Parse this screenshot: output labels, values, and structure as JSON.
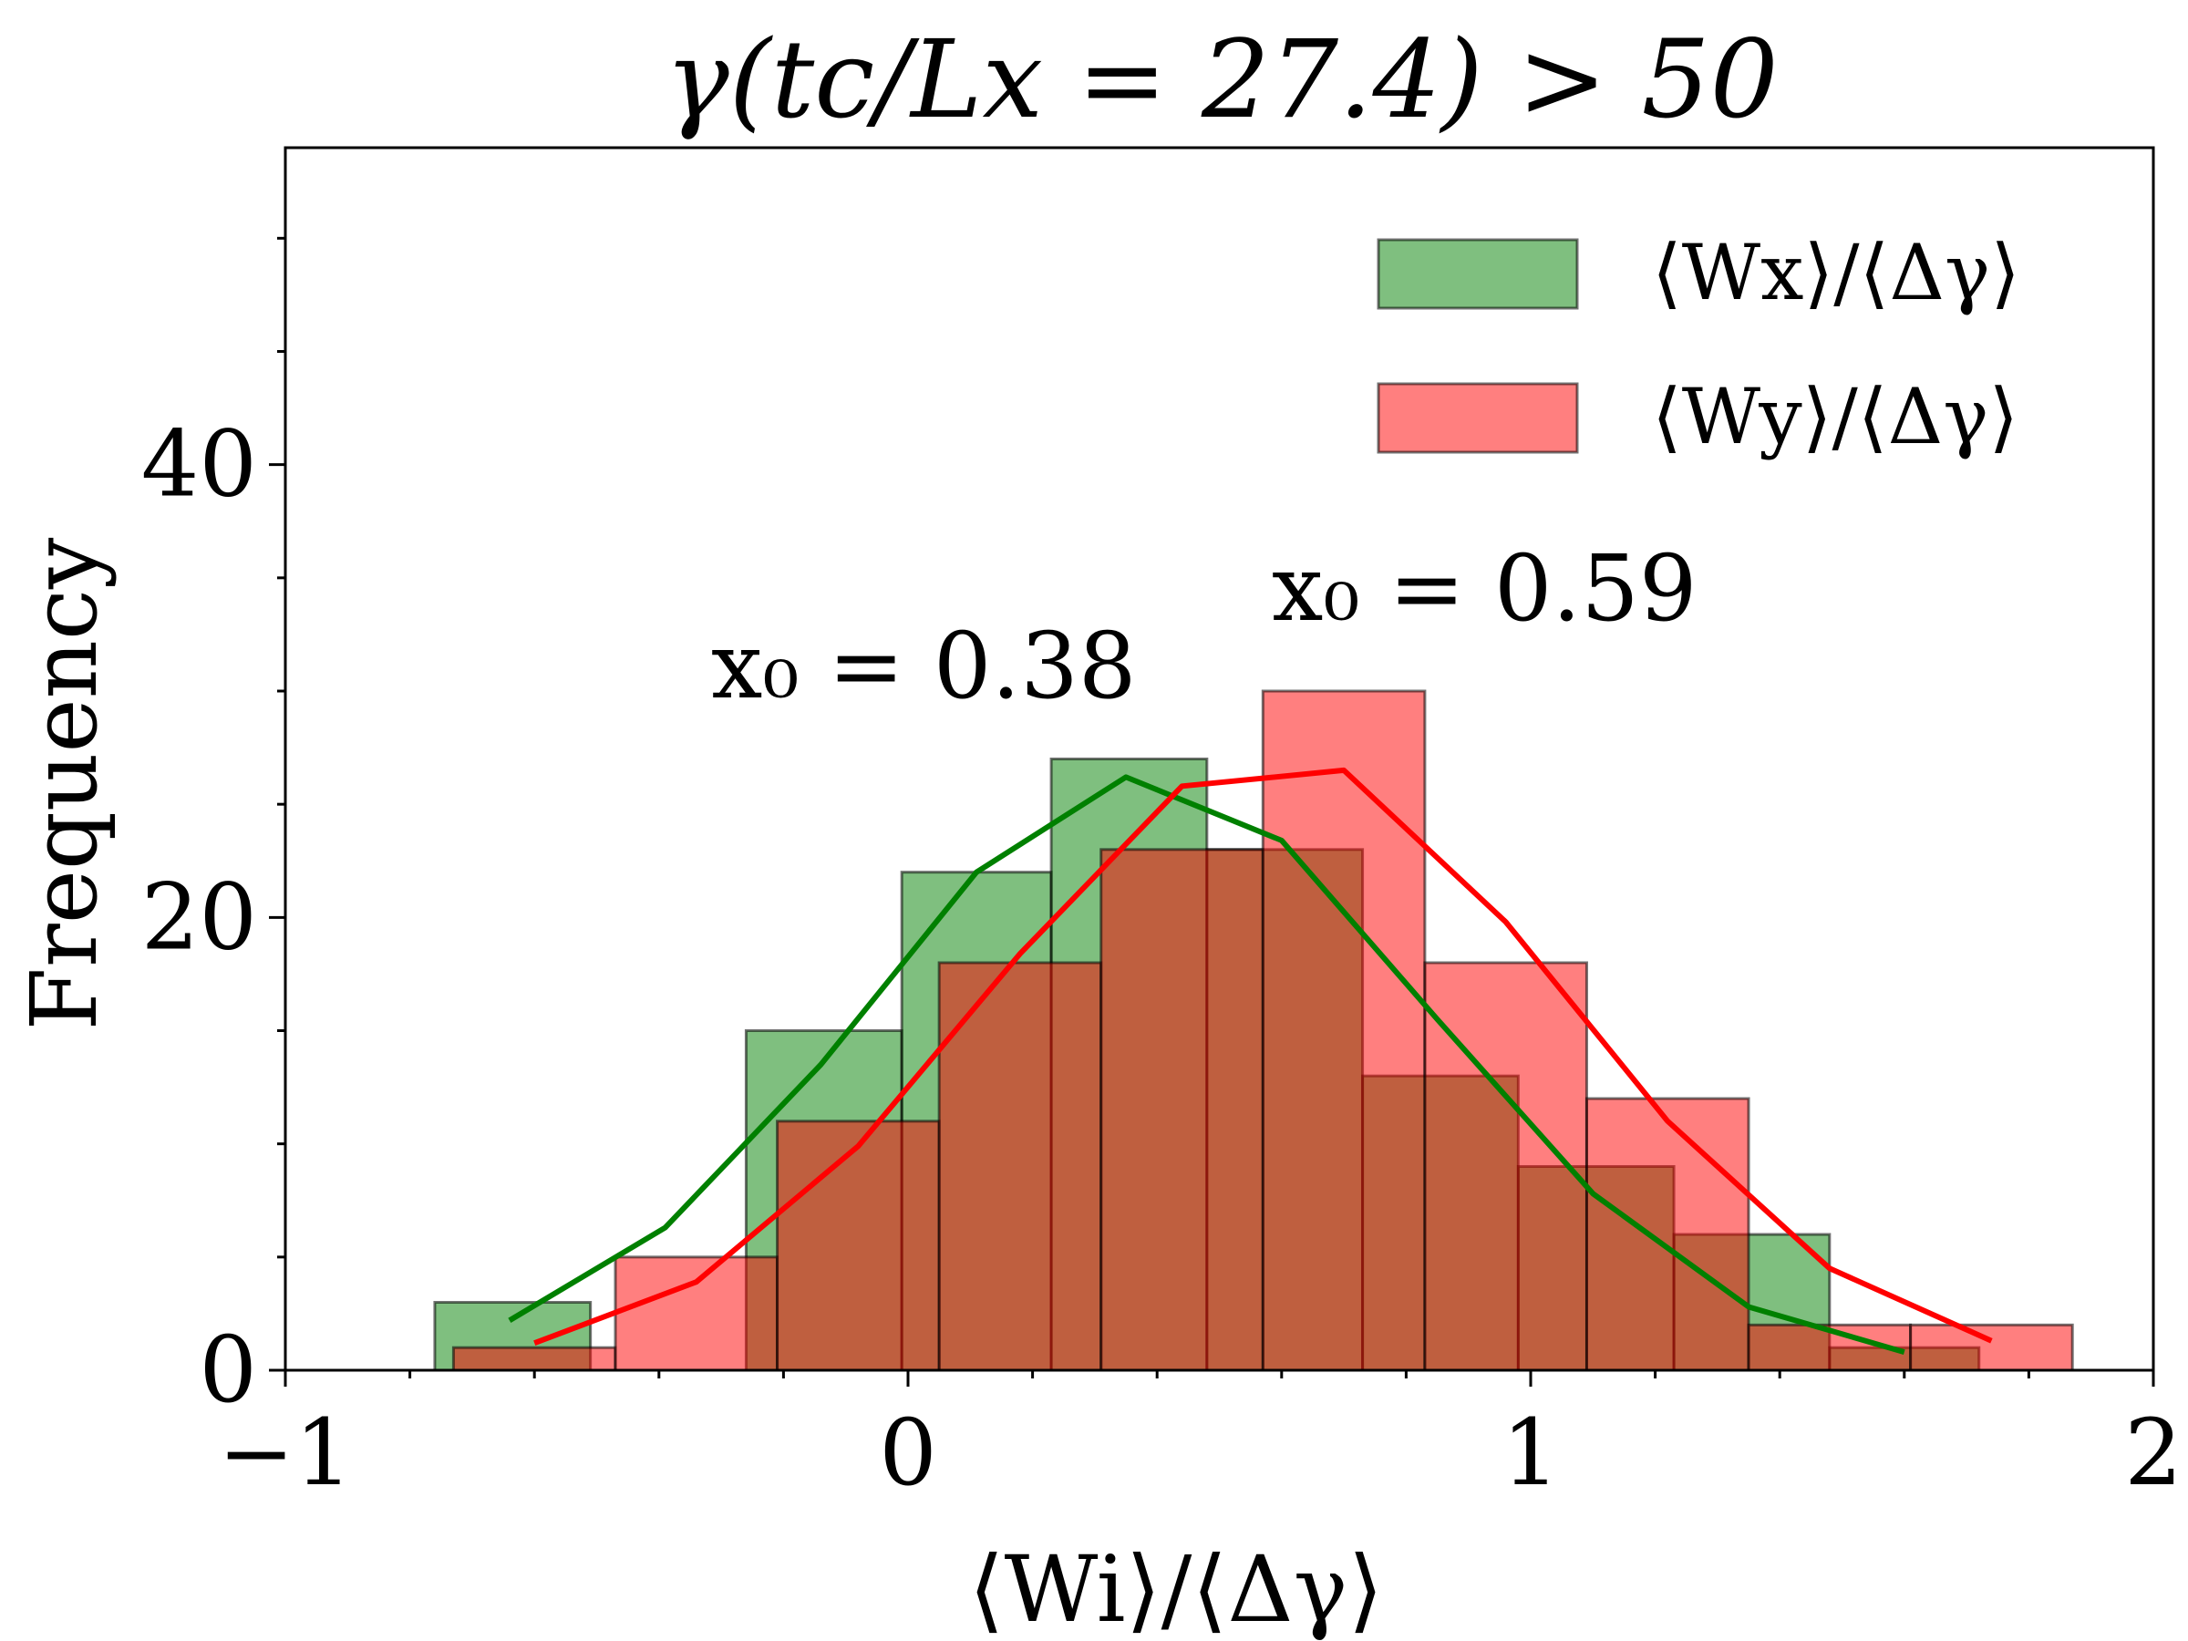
{
  "chart_data": {
    "type": "bar",
    "title": "γ(tc/Lx = 27.4) > 50",
    "xlabel": "⟨Wi⟩/⟨Δγ⟩",
    "ylabel": "Frequency",
    "xlim": [
      -1,
      2
    ],
    "ylim": [
      0,
      54
    ],
    "xticks": [
      -1,
      0,
      1,
      2
    ],
    "xtick_labels": [
      "−1",
      "0",
      "1",
      "2"
    ],
    "yticks": [
      0,
      20,
      40
    ],
    "ytick_labels": [
      "0",
      "20",
      "40"
    ],
    "legend_position": "top-right",
    "series": [
      {
        "name": "⟨Wx⟩/⟨Δγ⟩",
        "color": "#008000",
        "bins": [
          {
            "x0": -0.76,
            "x1": -0.51,
            "count": 3
          },
          {
            "x0": -0.51,
            "x1": -0.26,
            "count": 0
          },
          {
            "x0": -0.26,
            "x1": -0.01,
            "count": 15
          },
          {
            "x0": -0.01,
            "x1": 0.23,
            "count": 22
          },
          {
            "x0": 0.23,
            "x1": 0.48,
            "count": 27
          },
          {
            "x0": 0.48,
            "x1": 0.73,
            "count": 23
          },
          {
            "x0": 0.73,
            "x1": 0.98,
            "count": 13
          },
          {
            "x0": 0.98,
            "x1": 1.23,
            "count": 9
          },
          {
            "x0": 1.23,
            "x1": 1.48,
            "count": 6
          },
          {
            "x0": 1.48,
            "x1": 1.72,
            "count": 1
          }
        ],
        "fit_x": [
          -0.64,
          -0.39,
          -0.14,
          0.11,
          0.35,
          0.6,
          0.85,
          1.1,
          1.35,
          1.6
        ],
        "fit_y": [
          2.2,
          6.3,
          13.5,
          22.0,
          26.2,
          23.4,
          15.5,
          7.8,
          2.8,
          0.8
        ],
        "annotation": "x₀ = 0.38"
      },
      {
        "name": "⟨Wy⟩/⟨Δγ⟩",
        "color": "#ff0000",
        "bins": [
          {
            "x0": -0.73,
            "x1": -0.47,
            "count": 1
          },
          {
            "x0": -0.47,
            "x1": -0.21,
            "count": 5
          },
          {
            "x0": -0.21,
            "x1": 0.05,
            "count": 11
          },
          {
            "x0": 0.05,
            "x1": 0.31,
            "count": 18
          },
          {
            "x0": 0.31,
            "x1": 0.57,
            "count": 23
          },
          {
            "x0": 0.57,
            "x1": 0.83,
            "count": 30
          },
          {
            "x0": 0.83,
            "x1": 1.09,
            "count": 18
          },
          {
            "x0": 1.09,
            "x1": 1.35,
            "count": 12
          },
          {
            "x0": 1.35,
            "x1": 1.61,
            "count": 2
          },
          {
            "x0": 1.61,
            "x1": 1.87,
            "count": 2
          }
        ],
        "fit_x": [
          -0.6,
          -0.34,
          -0.08,
          0.18,
          0.44,
          0.7,
          0.96,
          1.22,
          1.48,
          1.74
        ],
        "fit_y": [
          1.2,
          3.9,
          9.9,
          18.4,
          25.8,
          26.5,
          19.8,
          11.0,
          4.5,
          1.3
        ],
        "annotation": "x₀ = 0.59"
      }
    ]
  }
}
